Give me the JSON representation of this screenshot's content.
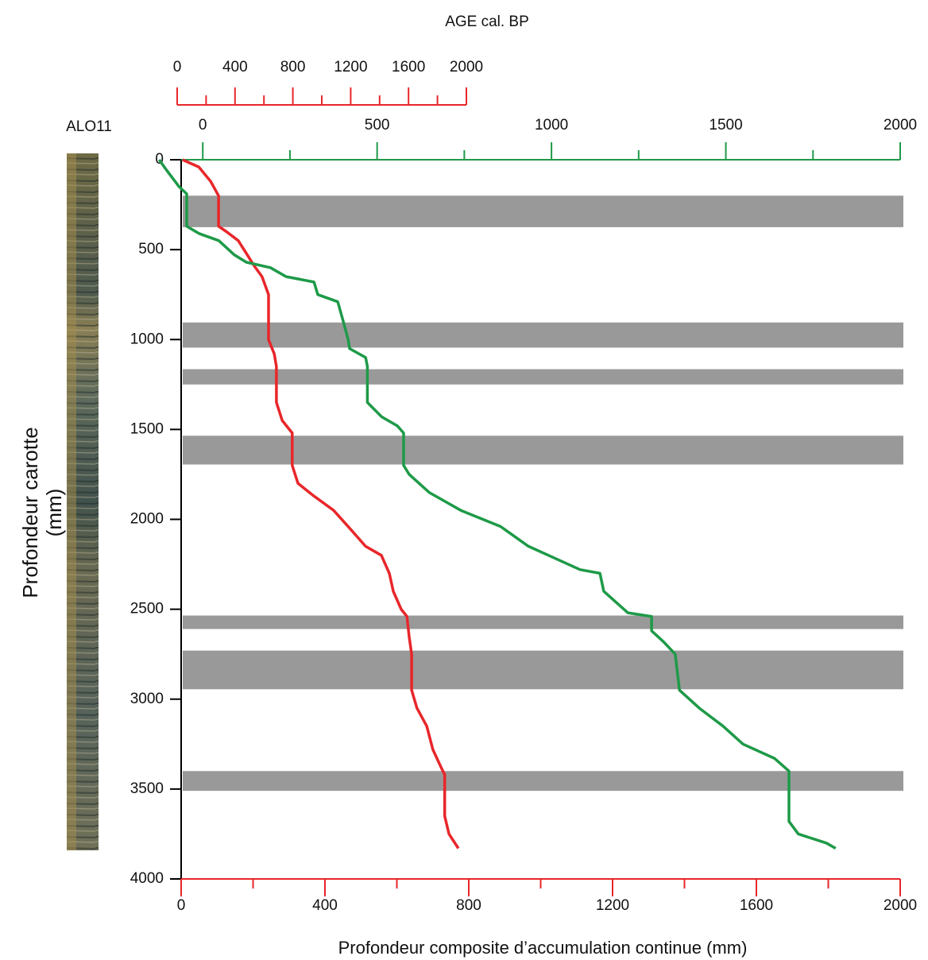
{
  "chart_data": {
    "type": "line",
    "title": "AGE cal. BP",
    "core_label": "ALO11",
    "xlabel": "Profondeur composite d’accumulation continue (mm)",
    "ylabel": [
      "Profondeur carotte",
      "(mm)"
    ],
    "xlim": [
      0,
      2000
    ],
    "xticks": [
      0,
      400,
      800,
      1200,
      1600,
      2000
    ],
    "xminorticks": [
      200,
      600,
      1000,
      1400,
      1800
    ],
    "x2lim": [
      -62,
      2000
    ],
    "x2ticks": [
      0,
      500,
      1000,
      1500,
      2000
    ],
    "x2minorticks": [
      250,
      750,
      1250,
      1750
    ],
    "x3lim": [
      0,
      2000
    ],
    "x3ticks": [
      0,
      400,
      800,
      1200,
      1600,
      2000
    ],
    "x3minorticks": [
      200,
      600,
      1000,
      1400,
      1800
    ],
    "ylim": [
      0,
      4000
    ],
    "y_inverted": true,
    "yticks": [
      0,
      500,
      1000,
      1500,
      2000,
      2500,
      3000,
      3500,
      4000
    ],
    "shaded_intervals": [
      [
        200,
        375
      ],
      [
        905,
        1045
      ],
      [
        1165,
        1250
      ],
      [
        1535,
        1695
      ],
      [
        2535,
        2610
      ],
      [
        2730,
        2945
      ],
      [
        3400,
        3510
      ]
    ],
    "shade_color": "#999999",
    "series": [
      {
        "color": "#e8262a",
        "axis": "x",
        "x": [
          4,
          49,
          82,
          104,
          104,
          126,
          159,
          181,
          203,
          225,
          243,
          243,
          259,
          265,
          265,
          281,
          309,
          309,
          325,
          369,
          424,
          469,
          513,
          557,
          579,
          590,
          612,
          628,
          634,
          641,
          641,
          656,
          683,
          700,
          723,
          733,
          733,
          745,
          771
        ],
        "y": [
          0,
          40,
          120,
          200,
          370,
          400,
          450,
          520,
          590,
          650,
          750,
          1000,
          1080,
          1150,
          1350,
          1450,
          1520,
          1700,
          1800,
          1870,
          1950,
          2050,
          2150,
          2200,
          2300,
          2400,
          2500,
          2540,
          2650,
          2750,
          2950,
          3050,
          3150,
          3280,
          3380,
          3420,
          3650,
          3750,
          3830
        ]
      },
      {
        "color": "#1e9a48",
        "axis": "x2",
        "x": [
          -125,
          -103,
          -68,
          -46,
          -46,
          -11,
          46,
          91,
          125,
          194,
          239,
          319,
          330,
          387,
          403,
          417,
          421,
          467,
          472,
          472,
          513,
          558,
          576,
          576,
          592,
          649,
          740,
          854,
          934,
          1014,
          1082,
          1139,
          1150,
          1219,
          1287,
          1287,
          1321,
          1355,
          1367,
          1424,
          1492,
          1549,
          1640,
          1681,
          1681,
          1708,
          1788,
          1815
        ],
        "y": [
          0,
          60,
          150,
          190,
          370,
          410,
          450,
          530,
          570,
          600,
          650,
          680,
          750,
          790,
          900,
          1000,
          1050,
          1100,
          1150,
          1350,
          1430,
          1480,
          1520,
          1700,
          1750,
          1850,
          1950,
          2040,
          2150,
          2220,
          2280,
          2300,
          2400,
          2520,
          2540,
          2620,
          2680,
          2750,
          2950,
          3050,
          3150,
          3250,
          3330,
          3400,
          3680,
          3750,
          3800,
          3830
        ]
      }
    ]
  }
}
